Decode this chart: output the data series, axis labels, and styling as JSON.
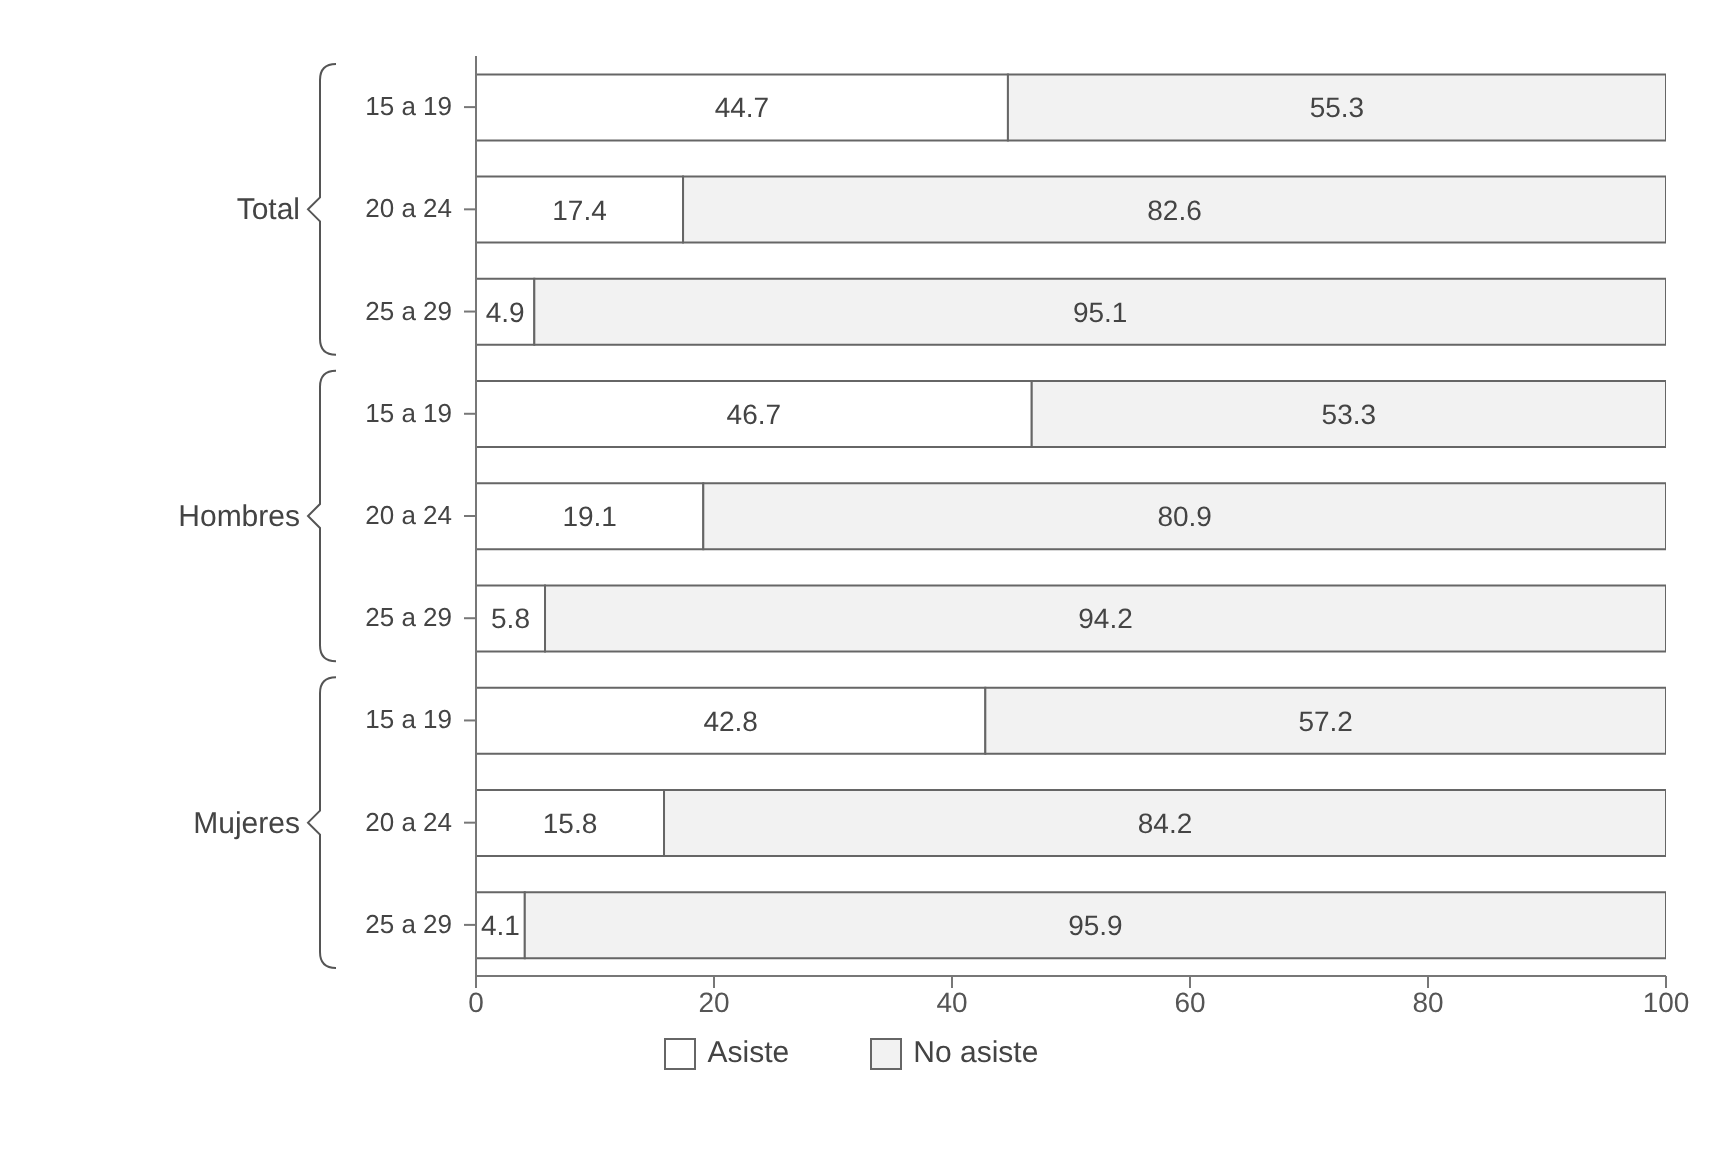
{
  "chart_data": {
    "type": "bar",
    "orientation": "horizontal",
    "stacked": true,
    "categories": [
      "15 a 19",
      "20 a 24",
      "25 a 29",
      "15 a 19",
      "20 a 24",
      "25 a 29",
      "15 a 19",
      "20 a 24",
      "25 a 29"
    ],
    "annotations": [
      "Total",
      "Hombres",
      "Mujeres"
    ],
    "series": [
      {
        "name": "Asiste",
        "color": "#ffffff",
        "values": [
          44.7,
          17.4,
          4.9,
          46.7,
          19.1,
          5.8,
          42.8,
          15.8,
          4.1
        ]
      },
      {
        "name": "No asiste",
        "color": "#f2f2f2",
        "values": [
          55.3,
          82.6,
          95.1,
          53.3,
          80.9,
          94.2,
          57.2,
          84.2,
          95.9
        ]
      }
    ],
    "xlim": [
      0,
      100
    ],
    "xticks": [
      0,
      20,
      40,
      60,
      80,
      100
    ],
    "data_labels": true,
    "grid": false,
    "legend": "bottom"
  }
}
